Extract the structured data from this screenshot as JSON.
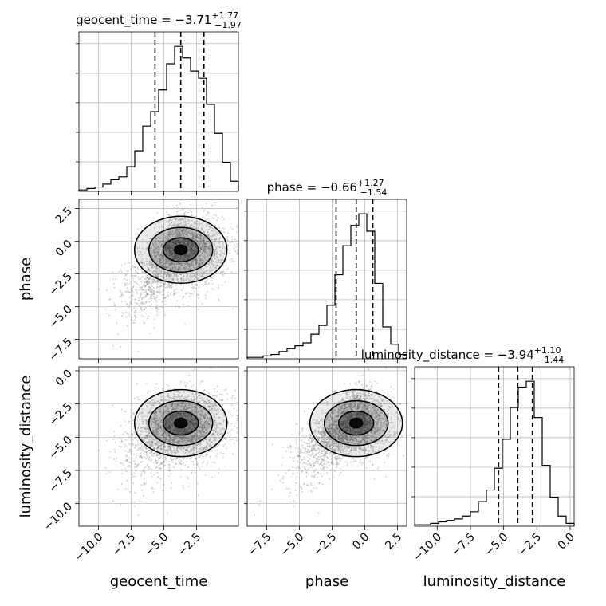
{
  "chart_data": {
    "type": "corner",
    "parameters": [
      {
        "label": "geocent_time",
        "range": [
          -11.5,
          0.7
        ],
        "ticks": [
          -10.0,
          -7.5,
          -5.0,
          -2.5
        ],
        "tick_labels": [
          "−10.0",
          "−7.5",
          "−5.0",
          "−2.5"
        ],
        "quantiles": [
          -5.68,
          -3.71,
          -1.94
        ],
        "median": -3.71,
        "title": {
          "prefix": "geocent_time = −3.71",
          "plus": "+1.77",
          "minus": "−1.97"
        }
      },
      {
        "label": "phase",
        "range": [
          -9.0,
          3.2
        ],
        "ticks": [
          -7.5,
          -5.0,
          -2.5,
          0.0,
          2.5
        ],
        "tick_labels": [
          "−7.5",
          "−5.0",
          "−2.5",
          "0.0",
          "2.5"
        ],
        "quantiles": [
          -2.2,
          -0.66,
          0.61
        ],
        "median": -0.66,
        "title": {
          "prefix": "phase = −0.66",
          "plus": "+1.27",
          "minus": "−1.54"
        }
      },
      {
        "label": "luminosity_distance",
        "range": [
          -11.7,
          0.3
        ],
        "ticks": [
          -10.0,
          -7.5,
          -5.0,
          -2.5,
          0.0
        ],
        "tick_labels": [
          "−10.0",
          "−7.5",
          "−5.0",
          "−2.5",
          "0.0"
        ],
        "quantiles": [
          -5.38,
          -3.94,
          -2.84
        ],
        "median": -3.94,
        "title": {
          "prefix": "luminosity_distance = −3.94",
          "plus": "+1.10",
          "minus": "−1.44"
        }
      }
    ],
    "histograms": [
      {
        "param": "geocent_time",
        "bins": 20,
        "range": [
          -11.5,
          0.7
        ],
        "counts": [
          0.01,
          0.02,
          0.03,
          0.05,
          0.08,
          0.1,
          0.17,
          0.28,
          0.45,
          0.55,
          0.7,
          0.88,
          1.0,
          0.92,
          0.83,
          0.78,
          0.6,
          0.4,
          0.2,
          0.07
        ],
        "ymax": 1.1
      },
      {
        "param": "phase",
        "bins": 20,
        "range": [
          -9.0,
          3.2
        ],
        "counts": [
          0.01,
          0.01,
          0.02,
          0.03,
          0.05,
          0.07,
          0.09,
          0.11,
          0.17,
          0.23,
          0.37,
          0.58,
          0.78,
          0.92,
          1.0,
          0.88,
          0.52,
          0.22,
          0.1,
          0.03
        ],
        "ymax": 1.1
      },
      {
        "param": "luminosity_distance",
        "bins": 20,
        "range": [
          -11.7,
          0.3
        ],
        "counts": [
          0.01,
          0.01,
          0.02,
          0.03,
          0.04,
          0.05,
          0.07,
          0.1,
          0.17,
          0.25,
          0.4,
          0.6,
          0.82,
          0.96,
          1.0,
          0.75,
          0.42,
          0.2,
          0.07,
          0.02
        ],
        "ymax": 1.1
      }
    ],
    "grid": true,
    "color": "#000000",
    "scatter_color": "#808080",
    "fill_color": "#000000"
  }
}
